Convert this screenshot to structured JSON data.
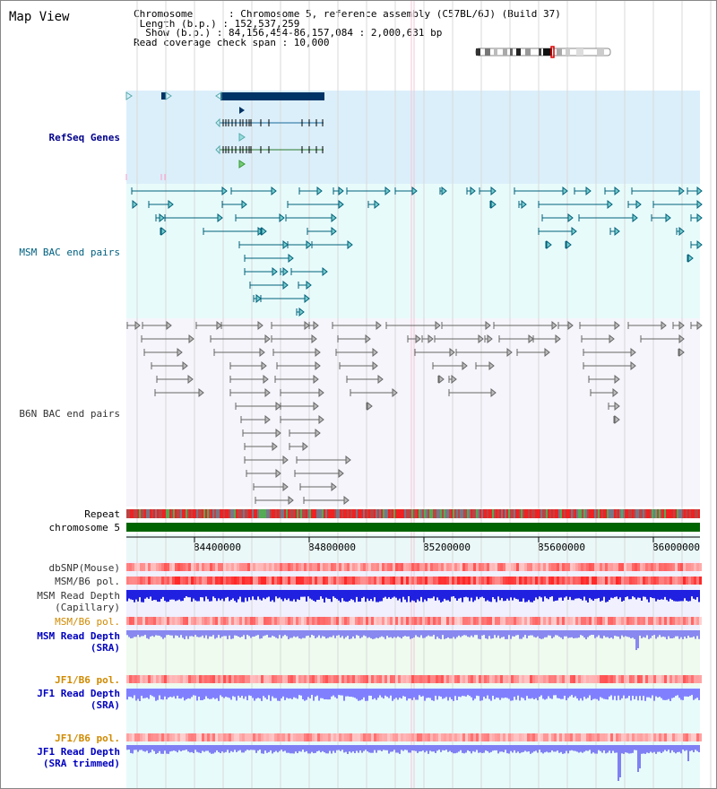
{
  "title": "Map View",
  "info": {
    "chromosome": "Chromosome      : Chromosome 5, reference assembly (C57BL/6J) (Build 37)",
    "length": " Length (b.p.) : 152,537,259",
    "show": "  Show (b.p.) : 84,156,454-86,157,084 : 2,000,631 bp",
    "coverage": "Read coverage check span : 10,000"
  },
  "tracks": {
    "refseq": "RefSeq Genes",
    "msm_bac": "MSM BAC end pairs",
    "b6n_bac": "B6N BAC end pairs",
    "repeat": "Repeat",
    "chromosome": "chromosome 5",
    "dbsnp": "dbSNP(Mouse)",
    "msm_pol_1": "MSM/B6 pol.",
    "msm_depth_cap_1": "MSM Read Depth",
    "msm_depth_cap_2": "(Capillary)",
    "msm_pol_2": "MSM/B6 pol.",
    "msm_depth_sra_1": "MSM Read Depth",
    "msm_depth_sra_2": "(SRA)",
    "jf1_pol_1": "JF1/B6 pol.",
    "jf1_depth_1": "JF1 Read Depth",
    "jf1_depth_2": "(SRA)",
    "jf1_pol_2": "JF1/B6 pol.",
    "jf1_trim_1": "JF1 Read Depth",
    "jf1_trim_2": "(SRA trimmed)"
  },
  "axis": {
    "ticks": [
      "84400000",
      "84800000",
      "85200000",
      "85600000",
      "86000000"
    ]
  },
  "colors": {
    "refseq_bg": "#dbeffa",
    "msm_bg": "#e8fbfb",
    "b6n_bg": "#f4f4fa",
    "gene": "#003366",
    "msm_line": "#00607a",
    "b6n_line": "#666666",
    "chromosome": "#006400",
    "depth_blue": "#2020e0",
    "depth_light": "#8080ff"
  }
}
